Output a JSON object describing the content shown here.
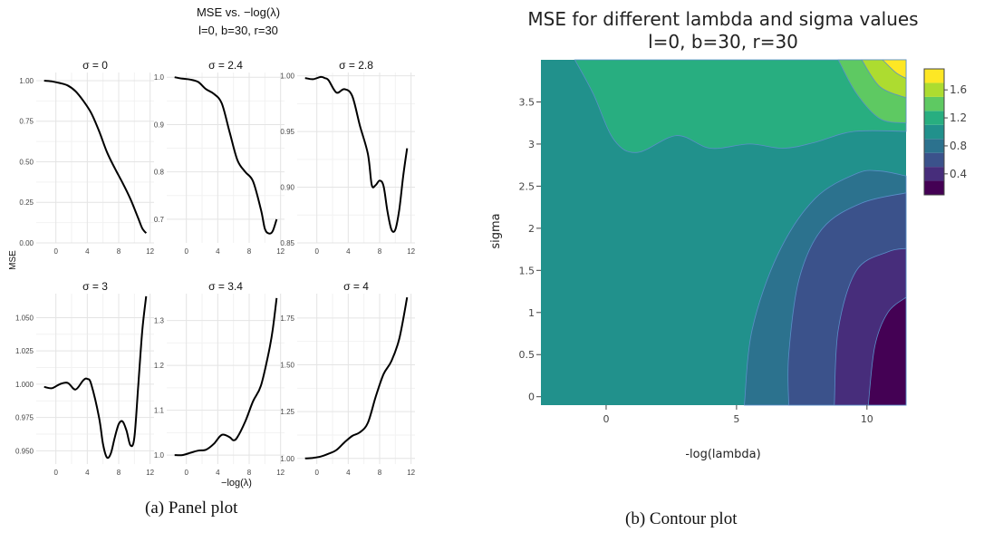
{
  "captions": {
    "left": "(a) Panel plot",
    "right": "(b) Contour plot"
  },
  "chart_data": [
    {
      "type": "line",
      "title": "MSE vs. −log(λ)",
      "subtitle": "l=0, b=30, r=30",
      "xlabel": "−log(λ)",
      "ylabel": "MSE",
      "grid": true,
      "xlim": [
        -2.5,
        12.5
      ],
      "x_ticks": [
        "0",
        "4",
        "8",
        "12"
      ],
      "panels": [
        {
          "label": "σ = 0",
          "ylim": [
            0,
            1.05
          ],
          "y_ticks": [
            "0.00",
            "0.25",
            "0.50",
            "0.75",
            "1.00"
          ],
          "y_tick_values": [
            0,
            0.25,
            0.5,
            0.75,
            1.0
          ],
          "x": [
            -1.5,
            -0.5,
            0.5,
            1.5,
            2.5,
            3.5,
            4.5,
            5.5,
            6.5,
            7.5,
            8.5,
            9.5,
            10.5,
            11.0,
            11.5
          ],
          "y": [
            1.0,
            0.995,
            0.985,
            0.97,
            0.935,
            0.875,
            0.8,
            0.69,
            0.56,
            0.46,
            0.37,
            0.27,
            0.15,
            0.09,
            0.06
          ]
        },
        {
          "label": "σ = 2.4",
          "ylim": [
            0.65,
            1.01
          ],
          "y_ticks": [
            "0.7",
            "0.8",
            "0.9",
            "1.0"
          ],
          "y_tick_values": [
            0.7,
            0.8,
            0.9,
            1.0
          ],
          "x": [
            -1.5,
            -0.5,
            0.5,
            1.5,
            2.5,
            3.5,
            4.5,
            5.5,
            6.5,
            7.5,
            8.5,
            9.5,
            10.0,
            10.5,
            11.0,
            11.5
          ],
          "y": [
            1.0,
            0.997,
            0.995,
            0.99,
            0.975,
            0.965,
            0.945,
            0.885,
            0.825,
            0.8,
            0.78,
            0.72,
            0.68,
            0.67,
            0.675,
            0.7
          ]
        },
        {
          "label": "σ = 2.8",
          "ylim": [
            0.85,
            1.003
          ],
          "y_ticks": [
            "0.85",
            "0.90",
            "0.95",
            "1.00"
          ],
          "y_tick_values": [
            0.85,
            0.9,
            0.95,
            1.0
          ],
          "x": [
            -1.5,
            -0.5,
            0.5,
            1.0,
            1.5,
            2.5,
            3.5,
            4.5,
            5.5,
            6.5,
            7.0,
            7.5,
            8.0,
            8.5,
            9.0,
            9.5,
            10.0,
            10.5,
            11.0,
            11.5
          ],
          "y": [
            0.998,
            0.997,
            0.999,
            0.998,
            0.996,
            0.985,
            0.988,
            0.982,
            0.955,
            0.93,
            0.902,
            0.902,
            0.906,
            0.901,
            0.878,
            0.862,
            0.862,
            0.88,
            0.91,
            0.935
          ]
        },
        {
          "label": "σ = 3",
          "ylim": [
            0.94,
            1.068
          ],
          "y_ticks": [
            "0.950",
            "0.975",
            "1.000",
            "1.025",
            "1.050"
          ],
          "y_tick_values": [
            0.95,
            0.975,
            1.0,
            1.025,
            1.05
          ],
          "x": [
            -1.5,
            -0.5,
            0.5,
            1.5,
            2.5,
            3.5,
            4.0,
            4.5,
            5.5,
            6.0,
            6.5,
            7.0,
            7.5,
            8.0,
            8.5,
            9.0,
            9.5,
            10.0,
            10.5,
            11.0,
            11.5
          ],
          "y": [
            0.998,
            0.997,
            1.0,
            1.001,
            0.996,
            1.003,
            1.004,
            1.0,
            0.975,
            0.955,
            0.945,
            0.948,
            0.96,
            0.97,
            0.972,
            0.965,
            0.954,
            0.96,
            1.0,
            1.04,
            1.066
          ]
        },
        {
          "label": "σ = 3.4",
          "ylim": [
            0.98,
            1.36
          ],
          "y_ticks": [
            "1.0",
            "1.1",
            "1.2",
            "1.3"
          ],
          "y_tick_values": [
            1.0,
            1.1,
            1.2,
            1.3
          ],
          "x": [
            -1.5,
            -0.5,
            0.5,
            1.5,
            2.5,
            3.5,
            4.5,
            5.5,
            6.0,
            6.5,
            7.5,
            8.5,
            9.5,
            10.5,
            11.0,
            11.5
          ],
          "y": [
            1.0,
            1.0,
            1.005,
            1.01,
            1.012,
            1.025,
            1.045,
            1.04,
            1.033,
            1.04,
            1.075,
            1.12,
            1.155,
            1.23,
            1.28,
            1.35
          ]
        },
        {
          "label": "σ = 4",
          "ylim": [
            0.97,
            1.88
          ],
          "y_ticks": [
            "1.00",
            "1.25",
            "1.50",
            "1.75"
          ],
          "y_tick_values": [
            1.0,
            1.25,
            1.5,
            1.75
          ],
          "x": [
            -1.5,
            -0.5,
            0.5,
            1.5,
            2.5,
            3.5,
            4.5,
            5.5,
            6.5,
            7.5,
            8.5,
            9.5,
            10.5,
            11.5
          ],
          "y": [
            1.0,
            1.003,
            1.01,
            1.025,
            1.045,
            1.085,
            1.12,
            1.14,
            1.19,
            1.33,
            1.45,
            1.52,
            1.64,
            1.86
          ]
        }
      ]
    },
    {
      "type": "contour",
      "title": "MSE for different lambda and sigma values",
      "subtitle": "l=0, b=30, r=30",
      "xlabel": "-log(lambda)",
      "ylabel": "sigma",
      "xlim": [
        -2.5,
        11.5
      ],
      "ylim": [
        -0.1,
        4.0
      ],
      "x_ticks": [
        0,
        5,
        10
      ],
      "y_ticks": [
        "0",
        "0.5",
        "1",
        "1.5",
        "2",
        "2.5",
        "3",
        "3.5"
      ],
      "y_tick_values": [
        0,
        0.5,
        1,
        1.5,
        2,
        2.5,
        3,
        3.5
      ],
      "colorbar": {
        "ticks": [
          "0.4",
          "0.8",
          "1.2",
          "1.6"
        ],
        "tick_values": [
          0.4,
          0.8,
          1.2,
          1.6
        ],
        "levels": [
          0.1,
          0.3,
          0.5,
          0.7,
          0.9,
          1.1,
          1.3,
          1.5,
          1.7,
          1.9
        ],
        "colors": [
          "#440154",
          "#472d7b",
          "#3b528b",
          "#2c728e",
          "#21918c",
          "#28ae80",
          "#5ec962",
          "#addc30",
          "#fde725"
        ]
      },
      "band_boundaries": [
        {
          "level": 0.3,
          "points": [
            [
              10.05,
              -0.1
            ],
            [
              10.3,
              0.6
            ],
            [
              10.8,
              1.0
            ],
            [
              11.5,
              1.18
            ]
          ]
        },
        {
          "level": 0.5,
          "points": [
            [
              8.75,
              -0.1
            ],
            [
              8.9,
              0.8
            ],
            [
              9.6,
              1.5
            ],
            [
              10.8,
              1.72
            ],
            [
              11.5,
              1.76
            ]
          ]
        },
        {
          "level": 0.7,
          "points": [
            [
              7.0,
              -0.1
            ],
            [
              7.0,
              0.5
            ],
            [
              7.4,
              1.4
            ],
            [
              8.3,
              2.0
            ],
            [
              9.8,
              2.3
            ],
            [
              11.5,
              2.42
            ]
          ]
        },
        {
          "level": 0.9,
          "points": [
            [
              5.3,
              -0.1
            ],
            [
              5.6,
              0.8
            ],
            [
              6.6,
              1.7
            ],
            [
              8.0,
              2.35
            ],
            [
              9.6,
              2.65
            ],
            [
              10.5,
              2.68
            ],
            [
              11.5,
              2.62
            ]
          ]
        },
        {
          "level": 1.1,
          "points": [
            [
              -1.2,
              4.0
            ],
            [
              -0.5,
              3.6
            ],
            [
              0.3,
              3.05
            ],
            [
              1.2,
              2.9
            ],
            [
              2.7,
              3.1
            ],
            [
              4.0,
              2.95
            ],
            [
              5.5,
              3.0
            ],
            [
              6.8,
              2.95
            ],
            [
              8.0,
              3.02
            ],
            [
              9.5,
              3.15
            ],
            [
              11.5,
              3.15
            ]
          ]
        },
        {
          "level": 1.3,
          "points": [
            [
              8.9,
              4.0
            ],
            [
              9.6,
              3.6
            ],
            [
              10.5,
              3.3
            ],
            [
              11.5,
              3.25
            ]
          ]
        },
        {
          "level": 1.5,
          "points": [
            [
              9.8,
              4.0
            ],
            [
              10.5,
              3.68
            ],
            [
              11.5,
              3.55
            ]
          ]
        },
        {
          "level": 1.7,
          "points": [
            [
              10.6,
              4.0
            ],
            [
              11.1,
              3.85
            ],
            [
              11.5,
              3.78
            ]
          ]
        }
      ]
    }
  ]
}
